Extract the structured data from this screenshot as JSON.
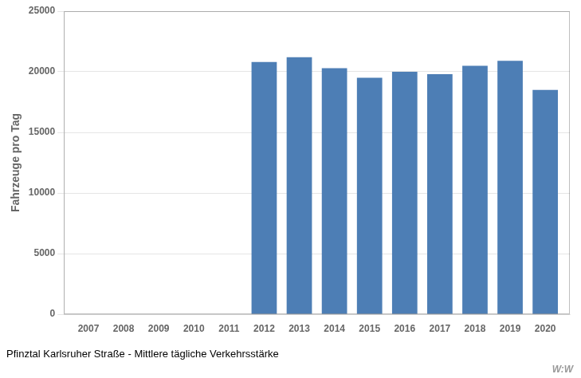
{
  "chart_data": {
    "type": "bar",
    "title": "Pfinztal Karlsruher Straße - Mittlere tägliche Verkehrsstärke",
    "y_label": "Fahrzeuge pro Tag",
    "annotations": [
      "W:W"
    ],
    "x": [
      2012,
      2013,
      2014,
      2015,
      2016,
      2017,
      2018,
      2019,
      2020
    ],
    "values": [
      20800,
      21200,
      20300,
      19500,
      20000,
      19800,
      20500,
      20900,
      18500
    ],
    "color": "#4d7eb5",
    "xlim": [
      2006.3,
      2020.7
    ],
    "xticks": [
      2007,
      2008,
      2009,
      2010,
      2011,
      2012,
      2013,
      2014,
      2015,
      2016,
      2017,
      2018,
      2019,
      2020
    ],
    "ylim": [
      0,
      25000
    ],
    "yticks": [
      0,
      5000,
      10000,
      15000,
      20000,
      25000
    ],
    "grid": "y"
  }
}
